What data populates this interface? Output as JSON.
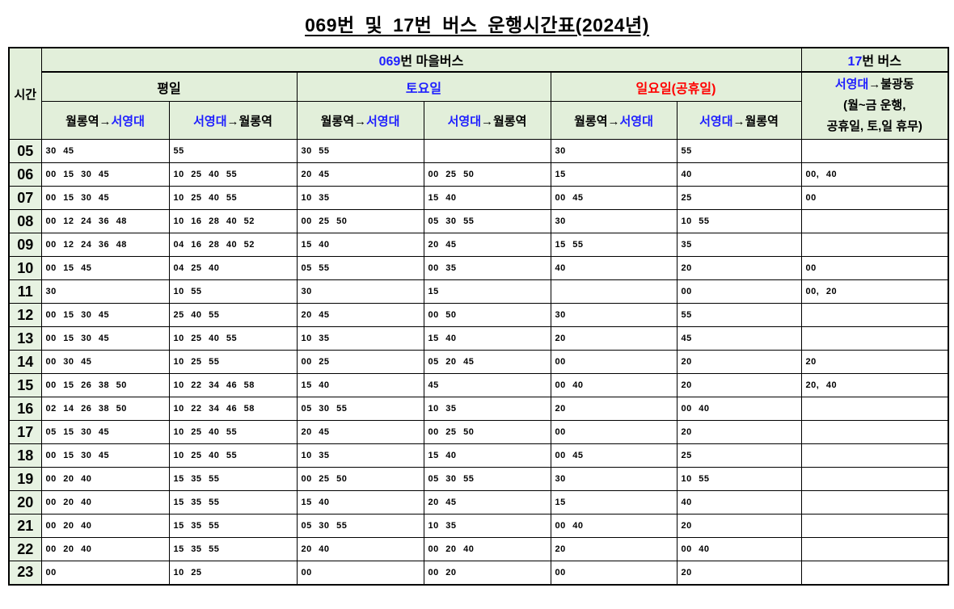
{
  "title": "069번 및 17번 버스 운행시간표(2024년)",
  "colors": {
    "accent_blue": "#1f1fff",
    "accent_red": "#ff0000",
    "header_green": "#e2efda",
    "hour_green": "#e7f2e2",
    "border": "#000000"
  },
  "table": {
    "hour_label": "시간",
    "bus069": {
      "number": "069",
      "suffix": "번 마을버스"
    },
    "bus17": {
      "number": "17",
      "suffix": "번 버스"
    },
    "day_sections": [
      {
        "label": "평일"
      },
      {
        "label": "토요일"
      },
      {
        "label": "일요일(공휴일)"
      }
    ],
    "dir_headers": [
      {
        "pre": "월롱역→",
        "blue": "서영대",
        "post": ""
      },
      {
        "pre": "",
        "blue": "서영대",
        "post": "→월롱역"
      },
      {
        "pre": "월롱역→",
        "blue": "서영대",
        "post": ""
      },
      {
        "pre": "",
        "blue": "서영대",
        "post": "→월롱역"
      },
      {
        "pre": "월롱역→",
        "blue": "서영대",
        "post": ""
      },
      {
        "pre": "",
        "blue": "서영대",
        "post": "→월롱역"
      }
    ],
    "bus17_header": {
      "blue": "서영대",
      "rest": "→불광동",
      "note1": "(월~금 운행,",
      "note2": "공휴일, 토,일 휴무)"
    },
    "rows": [
      {
        "hour": "05",
        "cells": [
          "30 45",
          "55",
          "30 55",
          "",
          "30",
          "55",
          ""
        ]
      },
      {
        "hour": "06",
        "cells": [
          "00 15 30 45",
          "10 25 40 55",
          "20 45",
          "00 25 50",
          "15",
          "40",
          "00, 40"
        ]
      },
      {
        "hour": "07",
        "cells": [
          "00 15 30 45",
          "10 25 40 55",
          "10 35",
          "15 40",
          "00 45",
          "25",
          "00"
        ]
      },
      {
        "hour": "08",
        "cells": [
          "00 12 24 36 48",
          "10 16 28 40 52",
          "00 25 50",
          "05 30 55",
          "30",
          "10 55",
          ""
        ]
      },
      {
        "hour": "09",
        "cells": [
          "00 12 24 36 48",
          "04 16 28 40 52",
          "15 40",
          "20 45",
          "15 55",
          "35",
          ""
        ]
      },
      {
        "hour": "10",
        "cells": [
          "00 15 45",
          "04 25 40",
          "05 55",
          "00 35",
          "40",
          "20",
          "00"
        ]
      },
      {
        "hour": "11",
        "cells": [
          "30",
          "10 55",
          "30",
          "15",
          "",
          "00",
          "00, 20"
        ]
      },
      {
        "hour": "12",
        "cells": [
          "00 15 30 45",
          "25 40 55",
          "20 45",
          "00 50",
          "30",
          "55",
          ""
        ]
      },
      {
        "hour": "13",
        "cells": [
          "00 15 30 45",
          "10 25 40 55",
          "10 35",
          "15 40",
          "20",
          "45",
          ""
        ]
      },
      {
        "hour": "14",
        "cells": [
          "00 30 45",
          "10 25 55",
          "00 25",
          "05 20 45",
          "00",
          "20",
          "20"
        ]
      },
      {
        "hour": "15",
        "cells": [
          "00 15 26 38 50",
          "10 22 34 46 58",
          "15 40",
          "45",
          "00 40",
          "20",
          "20, 40"
        ]
      },
      {
        "hour": "16",
        "cells": [
          "02 14 26 38 50",
          "10 22 34 46 58",
          "05 30 55",
          "10 35",
          "20",
          "00 40",
          ""
        ]
      },
      {
        "hour": "17",
        "cells": [
          "05 15 30 45",
          "10 25 40 55",
          "20 45",
          "00 25 50",
          "00",
          "20",
          ""
        ]
      },
      {
        "hour": "18",
        "cells": [
          "00 15 30 45",
          "10 25 40 55",
          "10 35",
          "15 40",
          "00 45",
          "25",
          ""
        ]
      },
      {
        "hour": "19",
        "cells": [
          "00 20 40",
          "15 35 55",
          "00 25 50",
          "05 30 55",
          "30",
          "10 55",
          ""
        ]
      },
      {
        "hour": "20",
        "cells": [
          "00 20 40",
          "15 35 55",
          "15 40",
          "20 45",
          "15",
          "40",
          ""
        ]
      },
      {
        "hour": "21",
        "cells": [
          "00 20 40",
          "15 35 55",
          "05 30 55",
          "10 35",
          "00 40",
          "20",
          ""
        ]
      },
      {
        "hour": "22",
        "cells": [
          "00 20 40",
          "15 35 55",
          "20 40",
          "00 20 40",
          "20",
          "00 40",
          ""
        ]
      },
      {
        "hour": "23",
        "cells": [
          "00",
          "10 25",
          "00",
          "00 20",
          "00",
          "20",
          ""
        ]
      }
    ]
  }
}
